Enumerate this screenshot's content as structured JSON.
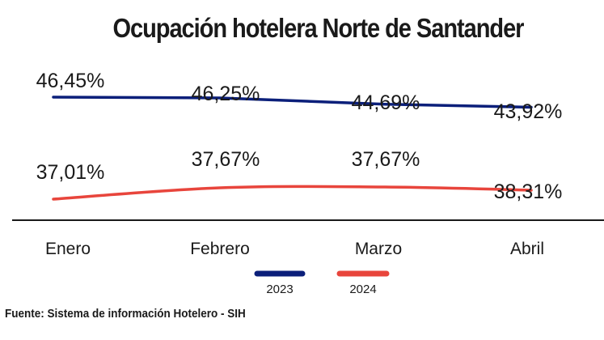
{
  "chart_data": {
    "type": "line",
    "title": "Ocupación hotelera Norte de Santander",
    "categories": [
      "Enero",
      "Febrero",
      "Marzo",
      "Abril"
    ],
    "series": [
      {
        "name": "2023",
        "values": [
          46.45,
          46.25,
          44.69,
          43.92
        ],
        "labels": [
          "46,45%",
          "46,25%",
          "44,69%",
          "43,92%"
        ],
        "color": "#0b1f7a"
      },
      {
        "name": "2024",
        "values": [
          37.01,
          37.67,
          37.67,
          38.31
        ],
        "labels": [
          "37,01%",
          "37,67%",
          "37,67%",
          "38,31%"
        ],
        "color": "#e8453c"
      }
    ],
    "xlabel": "",
    "ylabel": "",
    "grid": false,
    "legend": "bottom-center",
    "axis_color": "#1a1a1a"
  },
  "source_note": "Fuente: Sistema de información Hotelero - SIH"
}
